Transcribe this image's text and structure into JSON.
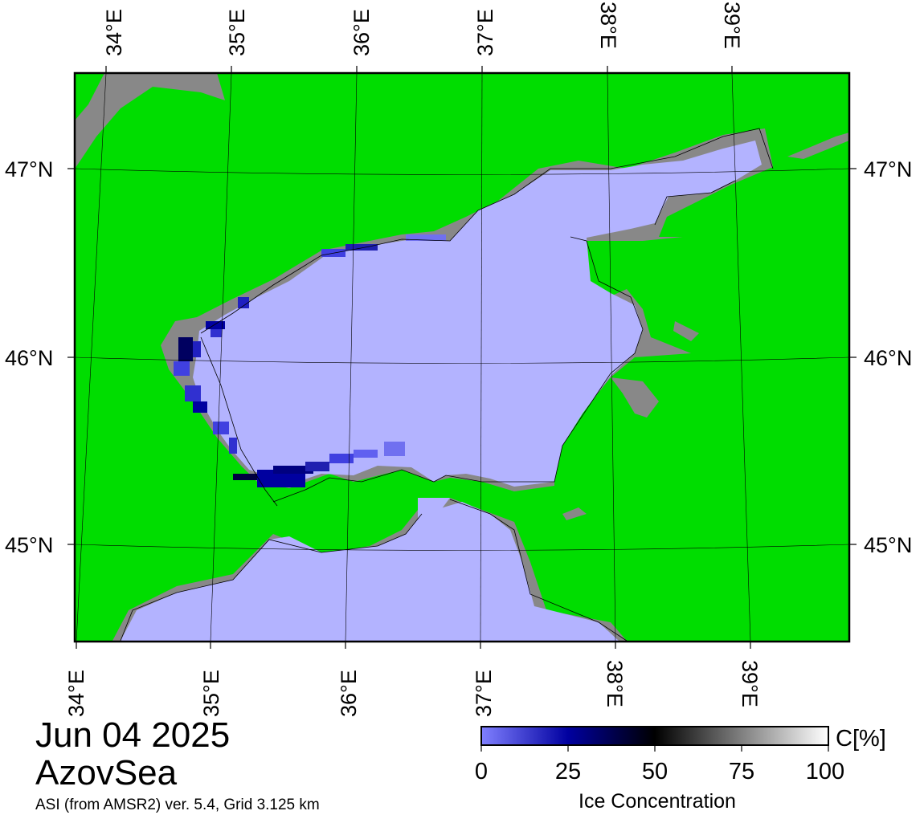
{
  "map": {
    "date": "Jun 04 2025",
    "region": "AzovSea",
    "product": "ASI (from AMSR2) ver. 5.4,  Grid 3.125 km",
    "lon_labels_top": [
      "34°E",
      "35°E",
      "36°E",
      "37°E",
      "38°E",
      "39°E"
    ],
    "lon_labels_bottom": [
      "34°E",
      "35°E",
      "36°E",
      "37°E",
      "38°E",
      "39°E"
    ],
    "lat_labels_left": [
      "47°N",
      "46°N",
      "45°N"
    ],
    "lat_labels_right": [
      "47°N",
      "46°N",
      "45°N"
    ],
    "colors": {
      "land": "#00dd00",
      "water": "#b3b3ff",
      "coast_mask": "#888888",
      "frame": "#000000"
    }
  },
  "legend": {
    "unit": "C[%]",
    "title": "Ice Concentration",
    "ticks": [
      "0",
      "25",
      "50",
      "75",
      "100"
    ],
    "gradient_stops": [
      "#8080ff",
      "#0000a0",
      "#000000",
      "#808080",
      "#ffffff"
    ]
  }
}
